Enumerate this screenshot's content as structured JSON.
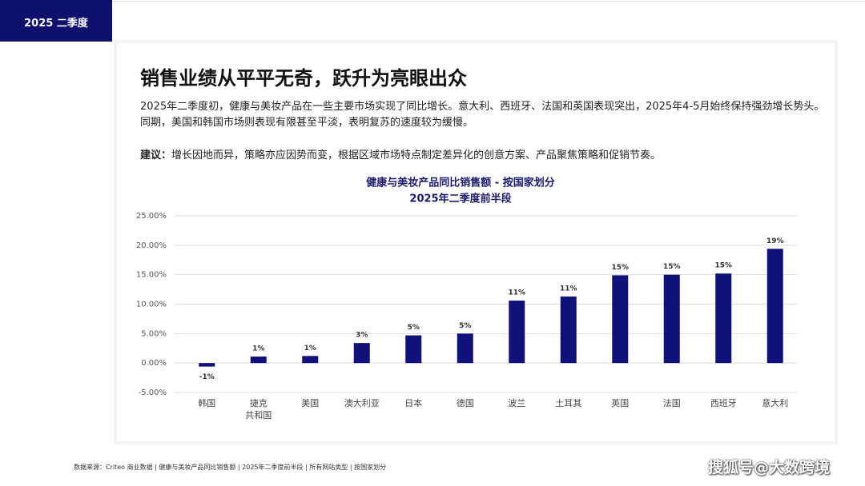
{
  "header": {
    "tag": "2025 二季度",
    "title": "销售业绩从平平无奇，跃升为亮眼出众"
  },
  "body": {
    "paragraph": "2025年二季度初，健康与美妆产品在一些主要市场实现了同比增长。意大利、西班牙、法国和英国表现突出，2025年4-5月始终保持强劲增长势头。 同期，美国和韩国市场则表现有限甚至平淡，表明复苏的速度较为缓慢。",
    "advice_label": "建议：",
    "advice": "增长因地而异，策略亦应因势而变，根据区域市场特点制定差异化的创意方案、产品聚焦策略和促销节奏。"
  },
  "chart_data": {
    "type": "bar",
    "title": "健康与美妆产品同比销售额 - 按国家划分",
    "subtitle": "2025年二季度前半段",
    "categories": [
      "韩国",
      "捷克\n共和国",
      "美国",
      "澳大利亚",
      "日本",
      "德国",
      "波兰",
      "土耳其",
      "英国",
      "法国",
      "西班牙",
      "意大利"
    ],
    "values": [
      -0.6,
      1.1,
      1.2,
      3.4,
      4.7,
      5.0,
      10.6,
      11.3,
      14.9,
      15.0,
      15.2,
      19.4
    ],
    "value_labels": [
      "-1%",
      "1%",
      "1%",
      "3%",
      "5%",
      "5%",
      "11%",
      "11%",
      "15%",
      "15%",
      "15%",
      "19%"
    ],
    "color": "#11117a",
    "ylim": [
      -5,
      25
    ],
    "yticks": [
      {
        "value": -5,
        "label": "-5.00%"
      },
      {
        "value": 0,
        "label": "0.00%"
      },
      {
        "value": 5,
        "label": "5.00%"
      },
      {
        "value": 10,
        "label": "10.00%"
      },
      {
        "value": 15,
        "label": "15.00%"
      },
      {
        "value": 20,
        "label": "20.00%"
      },
      {
        "value": 25,
        "label": "25.00%"
      }
    ],
    "grid": true
  },
  "footer": {
    "source": "数据来源：Criteo 商业数据 | 健康与美妆产品同比销售额 | 2025年二季度前半段 | 所有网站类型 | 按国家划分",
    "watermark": "搜狐号@大数跨境"
  }
}
